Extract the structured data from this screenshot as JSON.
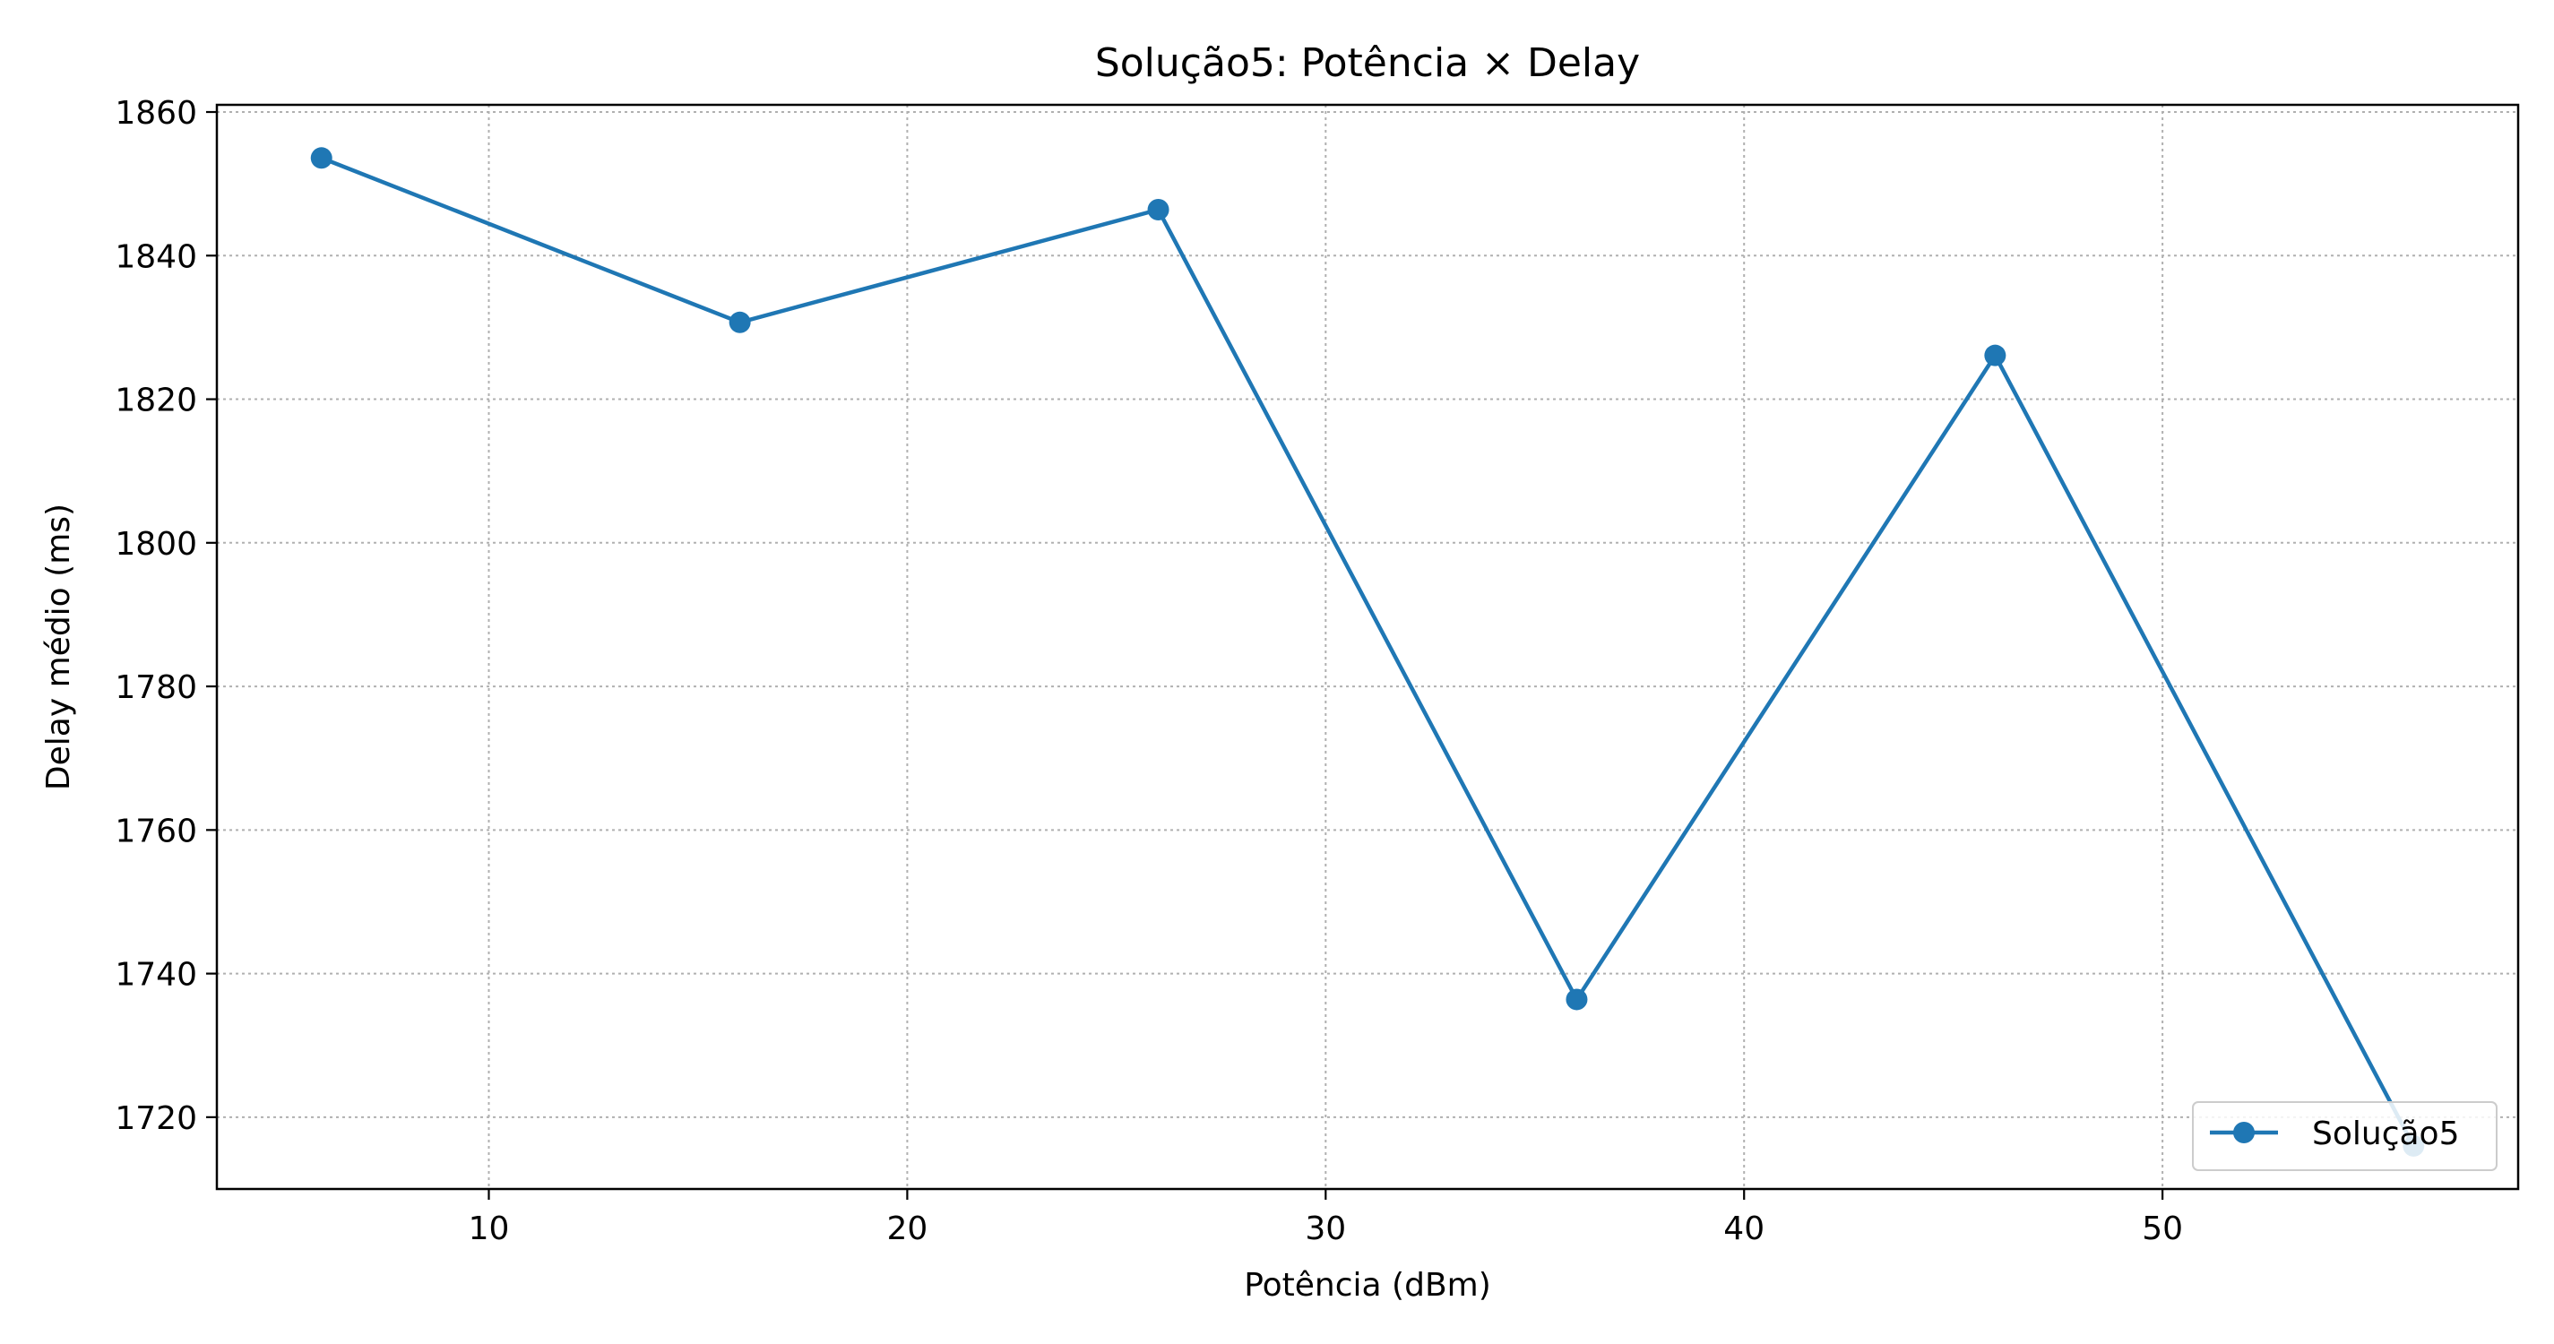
{
  "chart_data": {
    "type": "line",
    "title": "Solução5: Potência × Delay",
    "xlabel": "Potência (dBm)",
    "ylabel": "Delay médio (ms)",
    "xlim": [
      3.5,
      58.5
    ],
    "ylim": [
      1710,
      1861
    ],
    "xticks": [
      10,
      20,
      30,
      40,
      50
    ],
    "yticks": [
      1720,
      1740,
      1760,
      1780,
      1800,
      1820,
      1840,
      1860
    ],
    "grid": true,
    "legend_position": "lower-right",
    "series": [
      {
        "name": "Solução5",
        "color": "#1f77b4",
        "marker": "circle",
        "x": [
          6,
          16,
          26,
          36,
          46,
          56
        ],
        "y": [
          1853.6,
          1830.7,
          1846.4,
          1736.4,
          1826.1,
          1716.0
        ]
      }
    ]
  }
}
